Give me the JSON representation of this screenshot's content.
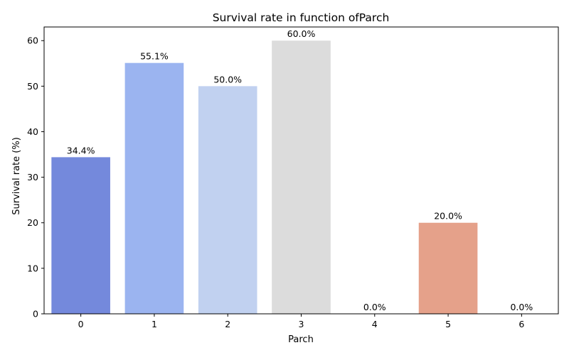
{
  "chart_data": {
    "type": "bar",
    "title": "Survival rate in function ofParch",
    "xlabel": "Parch",
    "ylabel": "Survival rate (%)",
    "categories": [
      "0",
      "1",
      "2",
      "3",
      "4",
      "5",
      "6"
    ],
    "values": [
      34.4,
      55.1,
      50.0,
      60.0,
      0.0,
      20.0,
      0.0
    ],
    "data_labels": [
      "34.4%",
      "55.1%",
      "50.0%",
      "60.0%",
      "0.0%",
      "20.0%",
      "0.0%"
    ],
    "colors": [
      "#7489dc",
      "#9bb4f0",
      "#c1d1f0",
      "#dcdcdc",
      "#f2c4ac",
      "#e5a18a",
      "#cf7867"
    ],
    "yticks": [
      0,
      10,
      20,
      30,
      40,
      50,
      60
    ],
    "ylim": [
      0,
      63
    ],
    "grid": false,
    "legend": false
  }
}
